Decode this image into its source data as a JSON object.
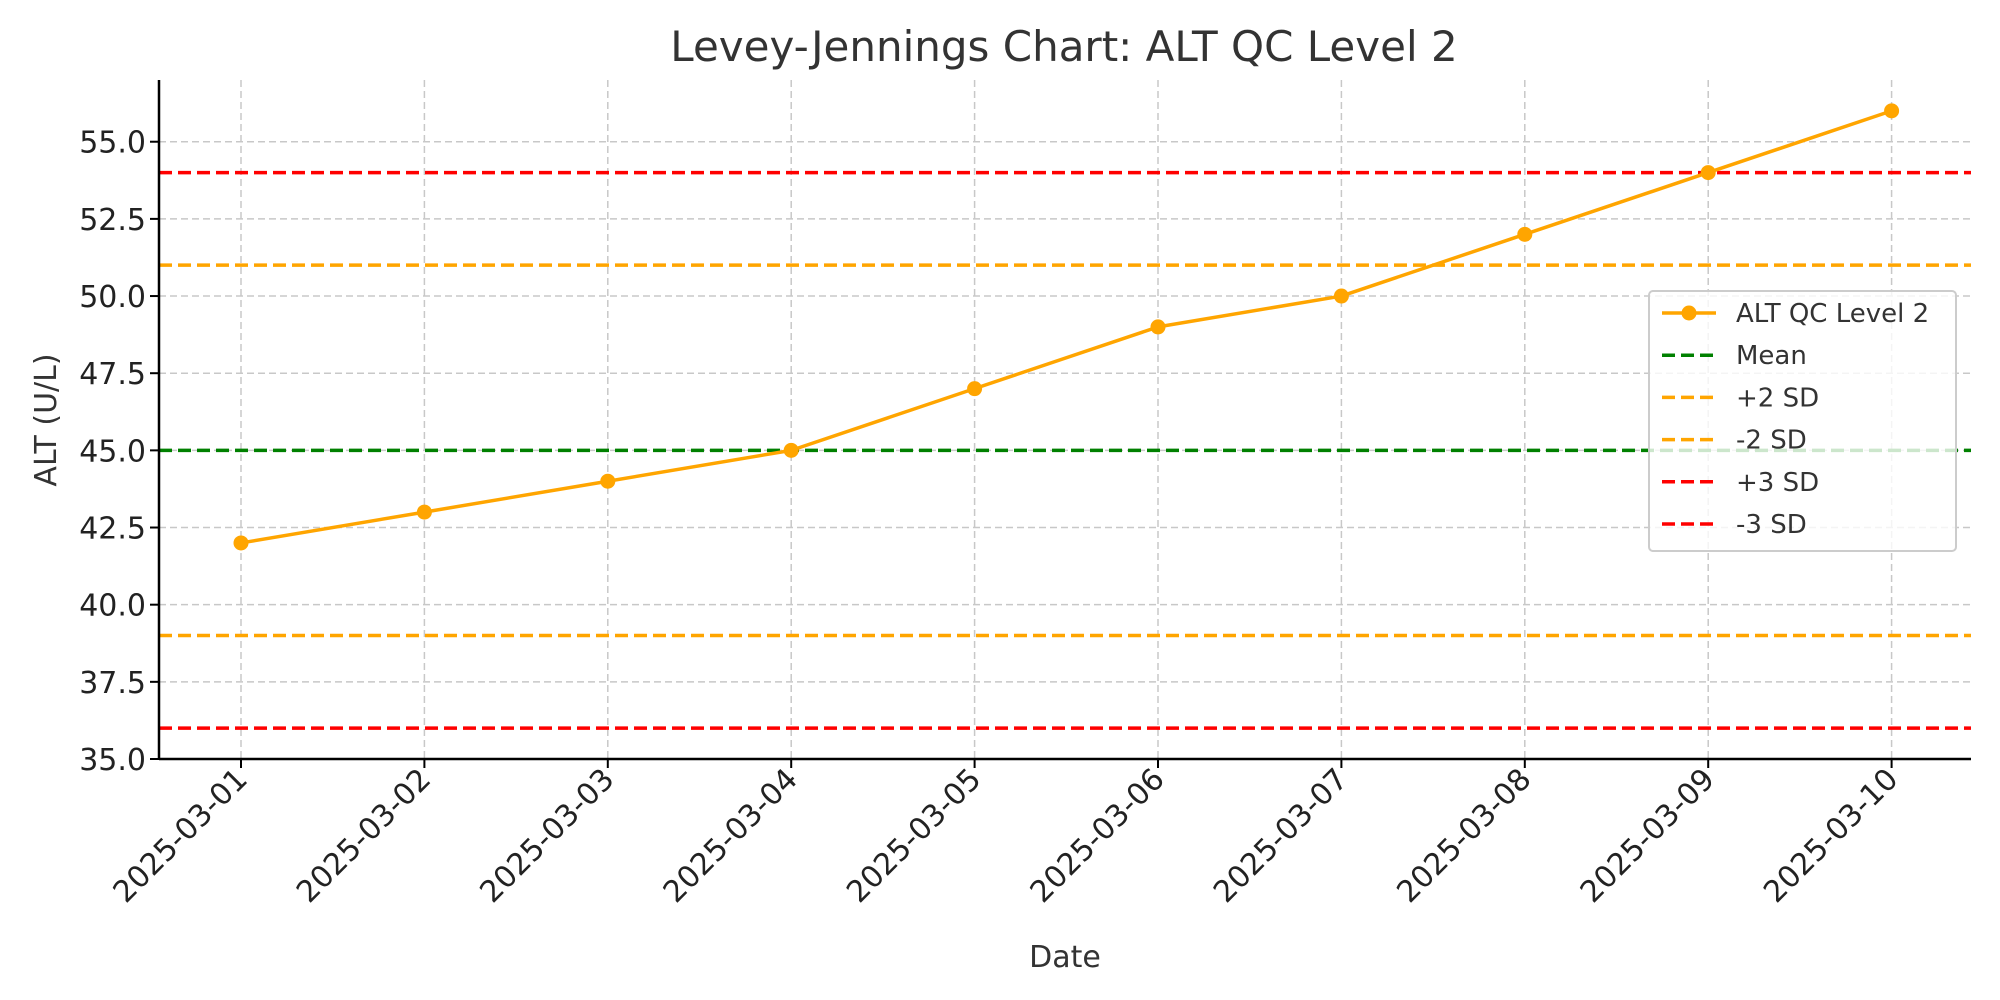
{
  "chart_data": {
    "type": "line",
    "title": "Levey-Jennings Chart: ALT QC Level 2",
    "xlabel": "Date",
    "ylabel": "ALT (U/L)",
    "categories": [
      "2025-03-01",
      "2025-03-02",
      "2025-03-03",
      "2025-03-04",
      "2025-03-05",
      "2025-03-06",
      "2025-03-07",
      "2025-03-08",
      "2025-03-09",
      "2025-03-10"
    ],
    "ylim": [
      35.0,
      57.0
    ],
    "yticks": [
      "35.0",
      "37.5",
      "40.0",
      "42.5",
      "45.0",
      "47.5",
      "50.0",
      "52.5",
      "55.0"
    ],
    "grid": true,
    "legend_position": "center-right",
    "series": [
      {
        "name": "ALT QC Level 2",
        "color": "#FFA500",
        "marker": "circle",
        "values": [
          42,
          43,
          44,
          45,
          47,
          49,
          50,
          52,
          54,
          56
        ]
      }
    ],
    "reference_lines": [
      {
        "name": "Mean",
        "value": 45,
        "color": "#008000",
        "style": "dashed"
      },
      {
        "name": "+2 SD",
        "value": 51,
        "color": "#FFA500",
        "style": "dashed"
      },
      {
        "name": "-2 SD",
        "value": 39,
        "color": "#FFA500",
        "style": "dashed"
      },
      {
        "name": "+3 SD",
        "value": 54,
        "color": "#FF0000",
        "style": "dashed"
      },
      {
        "name": "-3 SD",
        "value": 36,
        "color": "#FF0000",
        "style": "dashed"
      }
    ]
  }
}
